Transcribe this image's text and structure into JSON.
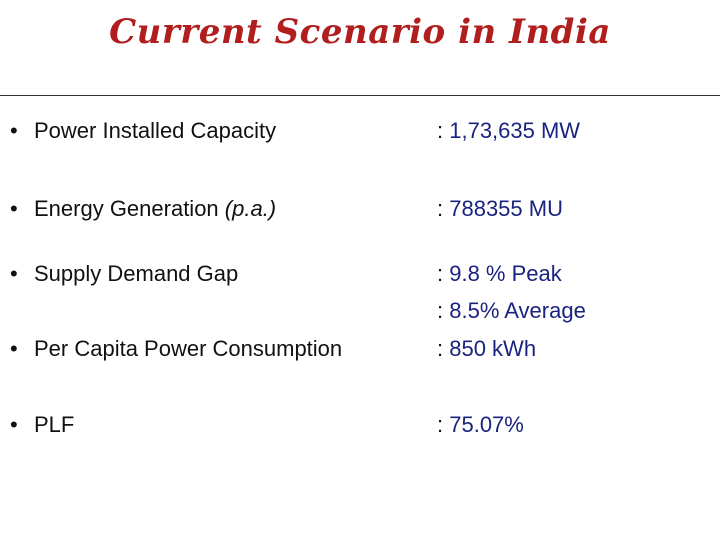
{
  "title": "Current Scenario in India",
  "items": [
    {
      "bullet": "•",
      "label": "Power Installed Capacity",
      "value_prefix": ": ",
      "value": "1,73,635 MW"
    },
    {
      "bullet": "•",
      "label": "Energy Generation ",
      "label_italic": "(p.a.)",
      "value_prefix": ": ",
      "value": "788355 MU"
    },
    {
      "bullet": "•",
      "label": "Supply Demand Gap",
      "value_prefix": ": ",
      "value": "9.8 % Peak"
    },
    {
      "value_prefix": ": ",
      "value": "8.5% Average"
    },
    {
      "bullet": "•",
      "label": "Per Capita Power Consumption",
      "value_prefix": ": ",
      "value": "850 kWh"
    },
    {
      "bullet": "•",
      "label": "PLF",
      "value_prefix": ": ",
      "value": "75.07%"
    }
  ]
}
